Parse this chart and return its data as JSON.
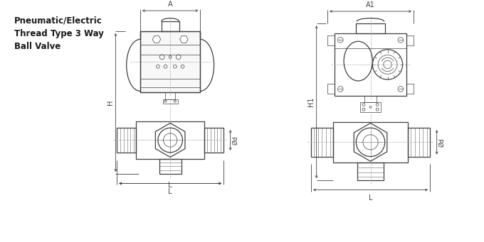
{
  "title": "Pneumatic/Electric\nThread Type 3 Way\nBall Valve",
  "title_color": "#1a1a1a",
  "bg_color": "#ffffff",
  "line_color": "#404040",
  "dim_color": "#404040",
  "label_A": "A",
  "label_A1": "A1",
  "label_H": "H",
  "label_H1": "H1",
  "label_L": "L",
  "label_d": "Ød",
  "fig_width": 6.8,
  "fig_height": 3.41,
  "lw_main": 0.9,
  "lw_thin": 0.5,
  "lw_dim": 0.6,
  "lw_hatch": 0.4
}
